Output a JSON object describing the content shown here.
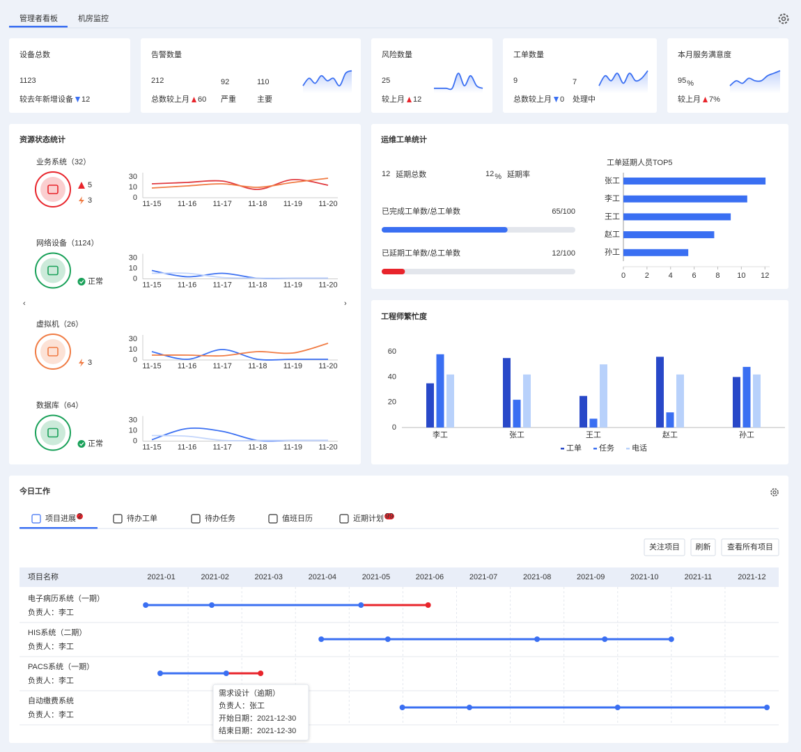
{
  "tabs": {
    "items": [
      "管理者看板",
      "机房监控"
    ],
    "active": 0
  },
  "kpis": [
    {
      "title": "设备总数",
      "value": "1123",
      "note": "较去年新增设备",
      "delta": "12",
      "trend": "down"
    },
    {
      "title": "告警数量",
      "value": "212",
      "note": "总数较上月",
      "delta": "60",
      "trend": "up",
      "extras": [
        {
          "value": "92",
          "label": "严重"
        },
        {
          "value": "110",
          "label": "主要"
        }
      ],
      "spark": [
        3,
        6,
        4,
        7,
        5,
        6,
        3,
        8,
        9
      ]
    },
    {
      "title": "风险数量",
      "value": "25",
      "note": "较上月",
      "delta": "12",
      "trend": "up",
      "spark": [
        2,
        2,
        2,
        2,
        8,
        3,
        7,
        3,
        2
      ]
    },
    {
      "title": "工单数量",
      "value": "9",
      "note": "总数较上月",
      "delta": "0",
      "trend": "down",
      "extras": [
        {
          "value": "7",
          "label": "处理中"
        }
      ],
      "spark": [
        3,
        7,
        5,
        8,
        4,
        8,
        5,
        6,
        9
      ]
    },
    {
      "title": "本月服务满意度",
      "value": "95",
      "unit": "%",
      "note": "较上月",
      "delta": "7%",
      "trend": "up",
      "spark": [
        3,
        5,
        4,
        6,
        5,
        5,
        7,
        8,
        9
      ]
    }
  ],
  "resources": {
    "title": "资源状态统计",
    "x": [
      "11-15",
      "11-16",
      "11-17",
      "11-18",
      "11-19",
      "11-20"
    ],
    "ylim": [
      0,
      30
    ],
    "yticks": [
      0,
      10,
      30
    ],
    "items": [
      {
        "label": "业务系统（32）",
        "color": "#e8242b",
        "status": [
          {
            "kind": "alarm",
            "text": "5"
          },
          {
            "kind": "risk",
            "text": "3"
          }
        ],
        "series": [
          {
            "color": "#e0393e",
            "values": [
              20,
              22,
              24,
              12,
              26,
              18
            ]
          },
          {
            "color": "#f07b43",
            "values": [
              14,
              17,
              20,
              15,
              22,
              28
            ]
          }
        ]
      },
      {
        "label": "网络设备（1124）",
        "color": "#18a058",
        "status": [
          {
            "kind": "ok",
            "text": "正常"
          }
        ],
        "series": [
          {
            "color": "#3a6ff2",
            "values": [
              12,
              3,
              8,
              1,
              1,
              1
            ]
          },
          {
            "color": "#c3d5fb",
            "values": [
              8,
              8,
              2,
              1,
              1,
              1
            ]
          }
        ]
      },
      {
        "label": "虚拟机（26）",
        "color": "#f07b43",
        "status": [
          {
            "kind": "risk",
            "text": "3"
          }
        ],
        "series": [
          {
            "color": "#3a6ff2",
            "values": [
              12,
              1,
              15,
              1,
              1,
              1
            ]
          },
          {
            "color": "#f07b43",
            "values": [
              7,
              7,
              6,
              12,
              10,
              24
            ]
          }
        ]
      },
      {
        "label": "数据库（64）",
        "color": "#18a058",
        "status": [
          {
            "kind": "ok",
            "text": "正常"
          }
        ],
        "series": [
          {
            "color": "#3a6ff2",
            "values": [
              2,
              18,
              14,
              1,
              1,
              1
            ]
          },
          {
            "color": "#c3d5fb",
            "values": [
              8,
              7,
              1,
              1,
              1,
              1
            ]
          }
        ]
      }
    ]
  },
  "workorders": {
    "title": "运维工单统计",
    "delayed": {
      "value": "12",
      "label": "延期总数"
    },
    "rate": {
      "value": "12",
      "unit": "%",
      "label": "延期率"
    },
    "progress": [
      {
        "label": "已完成工单数/总工单数",
        "text": "65/100",
        "value": 65,
        "max": 100,
        "color": "#3a6ff2"
      },
      {
        "label": "已延期工单数/总工单数",
        "text": "12/100",
        "value": 12,
        "max": 100,
        "color": "#e8242b"
      }
    ],
    "top5": {
      "type": "bar",
      "title": "工单延期人员TOP5",
      "categories": [
        "张工",
        "李工",
        "王工",
        "赵工",
        "孙工"
      ],
      "values": [
        12.05,
        10.5,
        9.1,
        7.7,
        5.5
      ],
      "color": "#3a6ff2",
      "xlim": [
        0,
        12.4
      ],
      "xticks": [
        0,
        2,
        4,
        6,
        8,
        10,
        12
      ]
    }
  },
  "busy": {
    "type": "bar",
    "title": "工程师繁忙度",
    "categories": [
      "李工",
      "张工",
      "王工",
      "赵工",
      "孙工"
    ],
    "series": [
      {
        "name": "工单",
        "color": "#2848c8",
        "values": [
          35,
          55,
          25,
          56,
          40
        ]
      },
      {
        "name": "任务",
        "color": "#3a6ff2",
        "values": [
          58,
          22,
          7,
          12,
          48
        ]
      },
      {
        "name": "电话",
        "color": "#b8d1fb",
        "values": [
          42,
          42,
          50,
          42,
          42
        ]
      }
    ],
    "ylim": [
      0,
      70
    ],
    "yticks": [
      0,
      20,
      40,
      60
    ]
  },
  "today_work": {
    "title": "今日工作",
    "tabs": [
      {
        "label": "项目进展",
        "badge": "2"
      },
      {
        "label": "待办工单"
      },
      {
        "label": "待办任务"
      },
      {
        "label": "值班日历"
      },
      {
        "label": "近期计划",
        "badge": "99"
      }
    ],
    "active_tab": 0,
    "buttons": [
      "关注项目",
      "刷新",
      "查看所有项目"
    ],
    "gantt": {
      "name_header": "项目名称",
      "months": [
        "2021-01",
        "2021-02",
        "2021-03",
        "2021-04",
        "2021-05",
        "2021-06",
        "2021-07",
        "2021-08",
        "2021-09",
        "2021-10",
        "2021-11",
        "2021-12"
      ],
      "xlim": [
        0,
        12
      ],
      "rows": [
        {
          "name": "电子病历系统（一期）",
          "owner": "负责人：李工",
          "points": [
            0.21,
            1.44,
            4.22,
            5.47
          ],
          "segment_colors": [
            "#3a6ff2",
            "#3a6ff2",
            "#e8242b"
          ]
        },
        {
          "name": "HIS系统（二期）",
          "owner": "负责人：李工",
          "points": [
            3.48,
            4.72,
            7.5,
            8.76,
            10.0
          ],
          "segment_colors": [
            "#3a6ff2",
            "#3a6ff2",
            "#3a6ff2",
            "#3a6ff2"
          ]
        },
        {
          "name": "PACS系统（一期）",
          "owner": "负责人：李工",
          "points": [
            0.48,
            1.71,
            2.35
          ],
          "segment_colors": [
            "#3a6ff2",
            "#e8242b"
          ]
        },
        {
          "name": "自动缴费系统",
          "owner": "负责人：李工",
          "points": [
            4.99,
            6.24,
            9.0,
            11.78
          ],
          "segment_colors": [
            "#3a6ff2",
            "#3a6ff2",
            "#3a6ff2"
          ]
        }
      ],
      "tooltip": {
        "title": "需求设计",
        "flag": "（逾期）",
        "lines": [
          "负责人：张工",
          "开始日期：2021-12-30",
          "结束日期：2021-12-30"
        ]
      }
    }
  }
}
